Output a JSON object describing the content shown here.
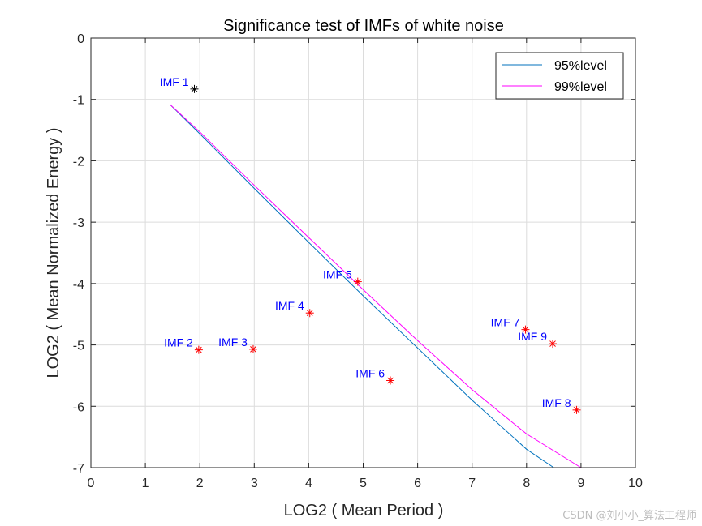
{
  "chart_data": {
    "type": "scatter",
    "title": "Significance test of IMFs of white noise",
    "xlabel": "LOG2 ( Mean Period )",
    "ylabel": "LOG2 ( Mean Normalized Energy )",
    "xlim": [
      0,
      10
    ],
    "ylim": [
      -7,
      0
    ],
    "xticks": [
      0,
      1,
      2,
      3,
      4,
      5,
      6,
      7,
      8,
      9,
      10
    ],
    "yticks": [
      0,
      -1,
      -2,
      -3,
      -4,
      -5,
      -6,
      -7
    ],
    "grid": true,
    "legend": {
      "placement": "top-right",
      "entries": [
        {
          "label": "95%level",
          "color": "#0072bd"
        },
        {
          "label": "99%level",
          "color": "#ff00ff"
        }
      ]
    },
    "points": [
      {
        "label": "IMF 1",
        "x": 1.9,
        "y": -0.83,
        "color": "#000000"
      },
      {
        "label": "IMF 2",
        "x": 1.98,
        "y": -5.08,
        "color": "#ff0000"
      },
      {
        "label": "IMF 3",
        "x": 2.98,
        "y": -5.07,
        "color": "#ff0000"
      },
      {
        "label": "IMF 4",
        "x": 4.02,
        "y": -4.48,
        "color": "#ff0000"
      },
      {
        "label": "IMF 5",
        "x": 4.9,
        "y": -3.97,
        "color": "#ff0000"
      },
      {
        "label": "IMF 6",
        "x": 5.5,
        "y": -5.58,
        "color": "#ff0000"
      },
      {
        "label": "IMF 7",
        "x": 7.98,
        "y": -4.75,
        "color": "#ff0000"
      },
      {
        "label": "IMF 8",
        "x": 8.92,
        "y": -6.06,
        "color": "#ff0000"
      },
      {
        "label": "IMF 9",
        "x": 8.48,
        "y": -4.98,
        "color": "#ff0000"
      }
    ],
    "series": [
      {
        "name": "95%level",
        "color": "#0072bd",
        "x": [
          1.45,
          2,
          3,
          4,
          5,
          6,
          7,
          8,
          8.5
        ],
        "y": [
          -1.08,
          -1.56,
          -2.45,
          -3.33,
          -4.2,
          -5.05,
          -5.9,
          -6.7,
          -7.0
        ]
      },
      {
        "name": "99%level",
        "color": "#ff00ff",
        "x": [
          1.45,
          2,
          3,
          4,
          5,
          6,
          7,
          8,
          9
        ],
        "y": [
          -1.08,
          -1.53,
          -2.4,
          -3.25,
          -4.1,
          -4.93,
          -5.73,
          -6.45,
          -7.0
        ]
      }
    ]
  },
  "watermark": "CSDN @刘小小_算法工程师"
}
